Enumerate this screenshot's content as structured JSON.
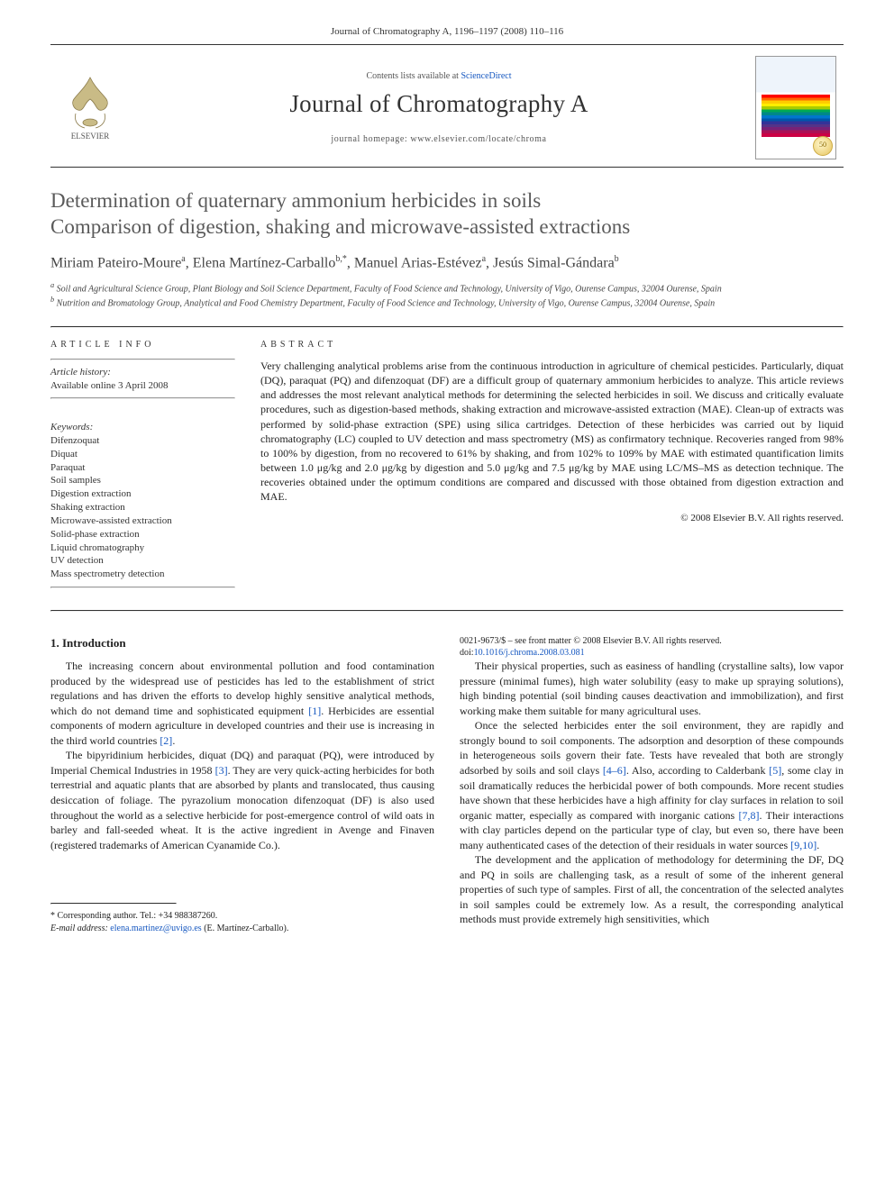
{
  "running_head": "Journal of Chromatography A, 1196–1197 (2008) 110–116",
  "masthead": {
    "contents_prefix": "Contents lists available at ",
    "contents_link": "ScienceDirect",
    "journal_name": "Journal of Chromatography A",
    "homepage_prefix": "journal homepage: ",
    "homepage": "www.elsevier.com/locate/chroma",
    "publisher_label": "ELSEVIER",
    "badge_text": "50"
  },
  "title_line1": "Determination of quaternary ammonium herbicides in soils",
  "title_line2": "Comparison of digestion, shaking and microwave-assisted extractions",
  "authors_html": "Miriam Pateiro-Moure<sup>a</sup>, Elena Martínez-Carballo<sup>b,*</sup>, Manuel Arias-Estévez<sup>a</sup>, Jesús Simal-Gándara<sup>b</sup>",
  "affiliations": {
    "a": "Soil and Agricultural Science Group, Plant Biology and Soil Science Department, Faculty of Food Science and Technology, University of Vigo, Ourense Campus, 32004 Ourense, Spain",
    "b": "Nutrition and Bromatology Group, Analytical and Food Chemistry Department, Faculty of Food Science and Technology, University of Vigo, Ourense Campus, 32004 Ourense, Spain"
  },
  "info": {
    "heading": "ARTICLE INFO",
    "history_label": "Article history:",
    "history_value": "Available online 3 April 2008",
    "keywords_label": "Keywords:",
    "keywords": [
      "Difenzoquat",
      "Diquat",
      "Paraquat",
      "Soil samples",
      "Digestion extraction",
      "Shaking extraction",
      "Microwave-assisted extraction",
      "Solid-phase extraction",
      "Liquid chromatography",
      "UV detection",
      "Mass spectrometry detection"
    ]
  },
  "abstract": {
    "heading": "ABSTRACT",
    "text": "Very challenging analytical problems arise from the continuous introduction in agriculture of chemical pesticides. Particularly, diquat (DQ), paraquat (PQ) and difenzoquat (DF) are a difficult group of quaternary ammonium herbicides to analyze. This article reviews and addresses the most relevant analytical methods for determining the selected herbicides in soil. We discuss and critically evaluate procedures, such as digestion-based methods, shaking extraction and microwave-assisted extraction (MAE). Clean-up of extracts was performed by solid-phase extraction (SPE) using silica cartridges. Detection of these herbicides was carried out by liquid chromatography (LC) coupled to UV detection and mass spectrometry (MS) as confirmatory technique. Recoveries ranged from 98% to 100% by digestion, from no recovered to 61% by shaking, and from 102% to 109% by MAE with estimated quantification limits between 1.0 μg/kg and 2.0 μg/kg by digestion and 5.0 μg/kg and 7.5 μg/kg by MAE using LC/MS–MS as detection technique. The recoveries obtained under the optimum conditions are compared and discussed with those obtained from digestion extraction and MAE.",
    "copyright": "© 2008 Elsevier B.V. All rights reserved."
  },
  "body": {
    "heading": "1. Introduction",
    "p1": "The increasing concern about environmental pollution and food contamination produced by the widespread use of pesticides has led to the establishment of strict regulations and has driven the efforts to develop highly sensitive analytical methods, which do not demand time and sophisticated equipment [1]. Herbicides are essential components of modern agriculture in developed countries and their use is increasing in the third world countries [2].",
    "p2": "The bipyridinium herbicides, diquat (DQ) and paraquat (PQ), were introduced by Imperial Chemical Industries in 1958 [3]. They are very quick-acting herbicides for both terrestrial and aquatic plants that are absorbed by plants and translocated, thus causing desiccation of foliage. The pyrazolium monocation difenzoquat (DF) is also used throughout the world as a selective herbicide for post-emergence control of wild oats in barley and fall-seeded wheat. It is the active ingredient in Avenge and Finaven (registered trademarks of American Cyanamide Co.).",
    "p3": "Their physical properties, such as easiness of handling (crystalline salts), low vapor pressure (minimal fumes), high water solubility (easy to make up spraying solutions), high binding potential (soil binding causes deactivation and immobilization), and first working make them suitable for many agricultural uses.",
    "p4": "Once the selected herbicides enter the soil environment, they are rapidly and strongly bound to soil components. The adsorption and desorption of these compounds in heterogeneous soils govern their fate. Tests have revealed that both are strongly adsorbed by soils and soil clays [4–6]. Also, according to Calderbank [5], some clay in soil dramatically reduces the herbicidal power of both compounds. More recent studies have shown that these herbicides have a high affinity for clay surfaces in relation to soil organic matter, especially as compared with inorganic cations [7,8]. Their interactions with clay particles depend on the particular type of clay, but even so, there have been many authenticated cases of the detection of their residuals in water sources [9,10].",
    "p5": "The development and the application of methodology for determining the DF, DQ and PQ in soils are challenging task, as a result of some of the inherent general properties of such type of samples. First of all, the concentration of the selected analytes in soil samples could be extremely low. As a result, the corresponding analytical methods must provide extremely high sensitivities, which"
  },
  "footnotes": {
    "corr": "Corresponding author. Tel.: +34 988387260.",
    "email_label": "E-mail address:",
    "email": "elena.martinez@uvigo.es",
    "email_suffix": "(E. Martínez-Carballo)."
  },
  "doi": {
    "line1": "0021-9673/$ – see front matter © 2008 Elsevier B.V. All rights reserved.",
    "label": "doi:",
    "link": "10.1016/j.chroma.2008.03.081"
  },
  "colors": {
    "link": "#1557c0",
    "title_gray": "#5a5a5a",
    "rule": "#333333"
  }
}
